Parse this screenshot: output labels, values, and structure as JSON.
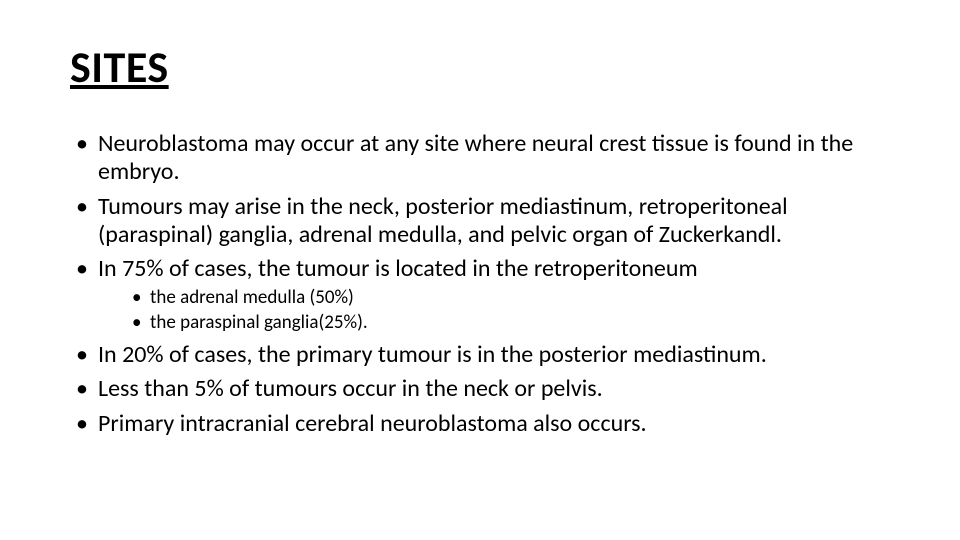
{
  "slide": {
    "title": "SITES",
    "title_fontsize": 44,
    "title_underline": true,
    "title_weight": 700,
    "body_fontsize_l1": 24,
    "body_fontsize_l2": 19,
    "text_color": "#000000",
    "background_color": "#ffffff",
    "bullets": [
      {
        "text": "Neuroblastoma may occur at any site where neural crest tissue is found in the embryo.",
        "children": []
      },
      {
        "text": "Tumours may arise in the neck, posterior mediastinum, retroperitoneal (paraspinal) ganglia, adrenal medulla, and pelvic organ of Zuckerkandl.",
        "children": []
      },
      {
        "text": "In 75% of cases, the tumour is located in the retroperitoneum",
        "children": [
          {
            "text": "the adrenal medulla (50%)"
          },
          {
            "text": "the paraspinal ganglia(25%)."
          }
        ]
      },
      {
        "text": "In 20% of cases, the primary tumour is in the posterior mediastinum.",
        "children": []
      },
      {
        "text": "Less than 5% of tumours occur in the neck or pelvis.",
        "children": []
      },
      {
        "text": "Primary intracranial cerebral neuroblastoma also occurs.",
        "children": []
      }
    ]
  }
}
